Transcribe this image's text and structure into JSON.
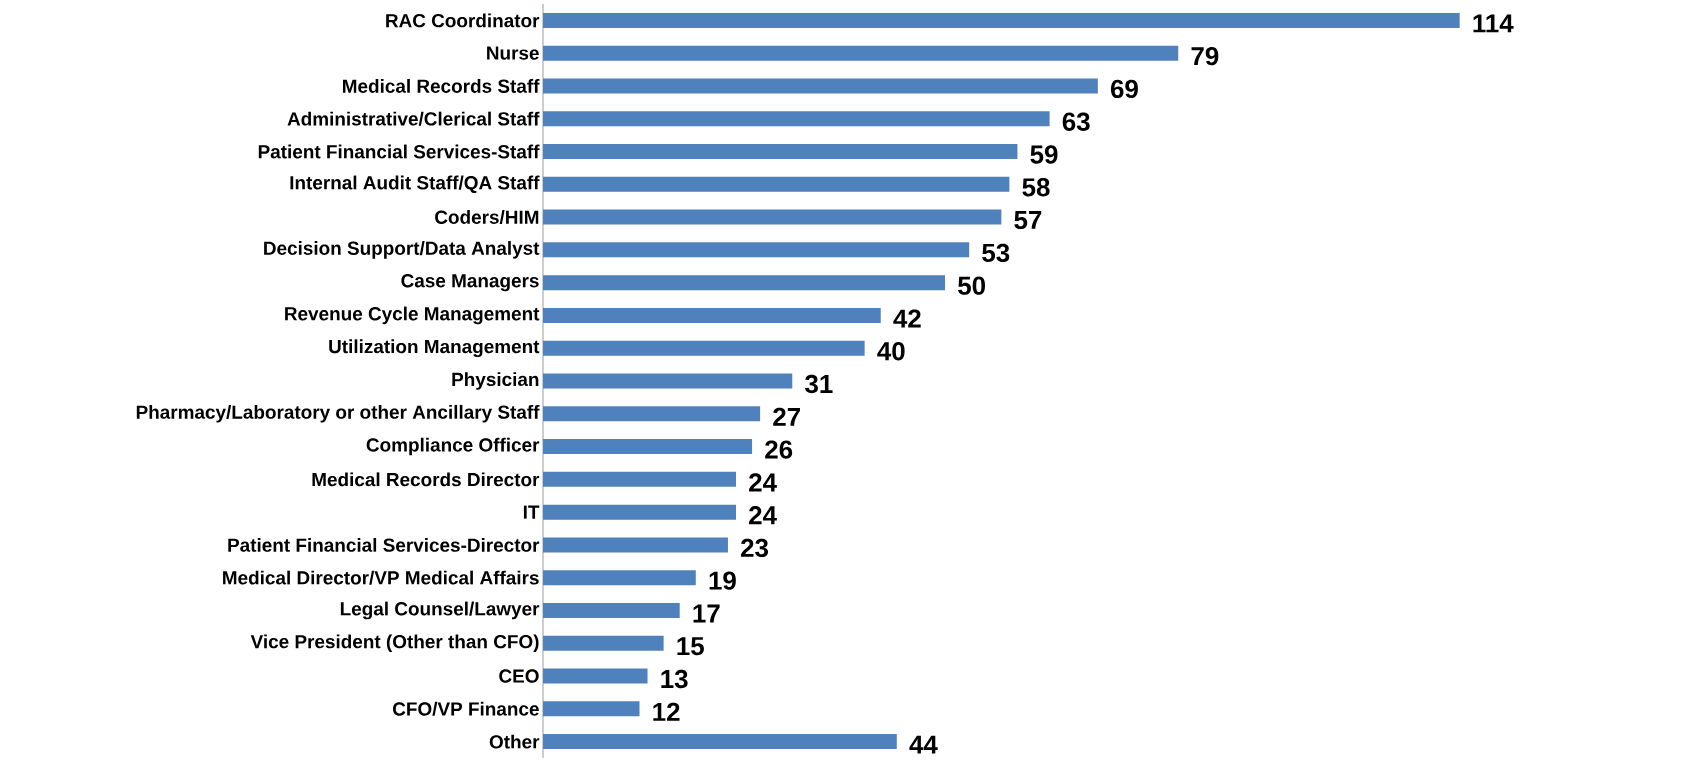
{
  "chart_data": {
    "type": "bar",
    "orientation": "horizontal",
    "data_labels": true,
    "color": "#4f81bd",
    "categories": [
      "RAC Coordinator",
      "Nurse",
      "Medical Records Staff",
      "Administrative/Clerical Staff",
      "Patient Financial Services-Staff",
      "Internal Audit Staff/QA Staff",
      "Coders/HIM",
      "Decision Support/Data Analyst",
      "Case Managers",
      "Revenue Cycle Management",
      "Utilization Management",
      "Physician",
      "Pharmacy/Laboratory or other Ancillary Staff",
      "Compliance Officer",
      "Medical Records Director",
      "IT",
      "Patient Financial Services-Director",
      "Medical Director/VP Medical Affairs",
      "Legal Counsel/Lawyer",
      "Vice President (Other than CFO)",
      "CEO",
      "CFO/VP Finance",
      "Other"
    ],
    "values": [
      114,
      79,
      69,
      63,
      59,
      58,
      57,
      53,
      50,
      42,
      40,
      31,
      27,
      26,
      24,
      24,
      23,
      19,
      17,
      15,
      13,
      12,
      44
    ]
  }
}
